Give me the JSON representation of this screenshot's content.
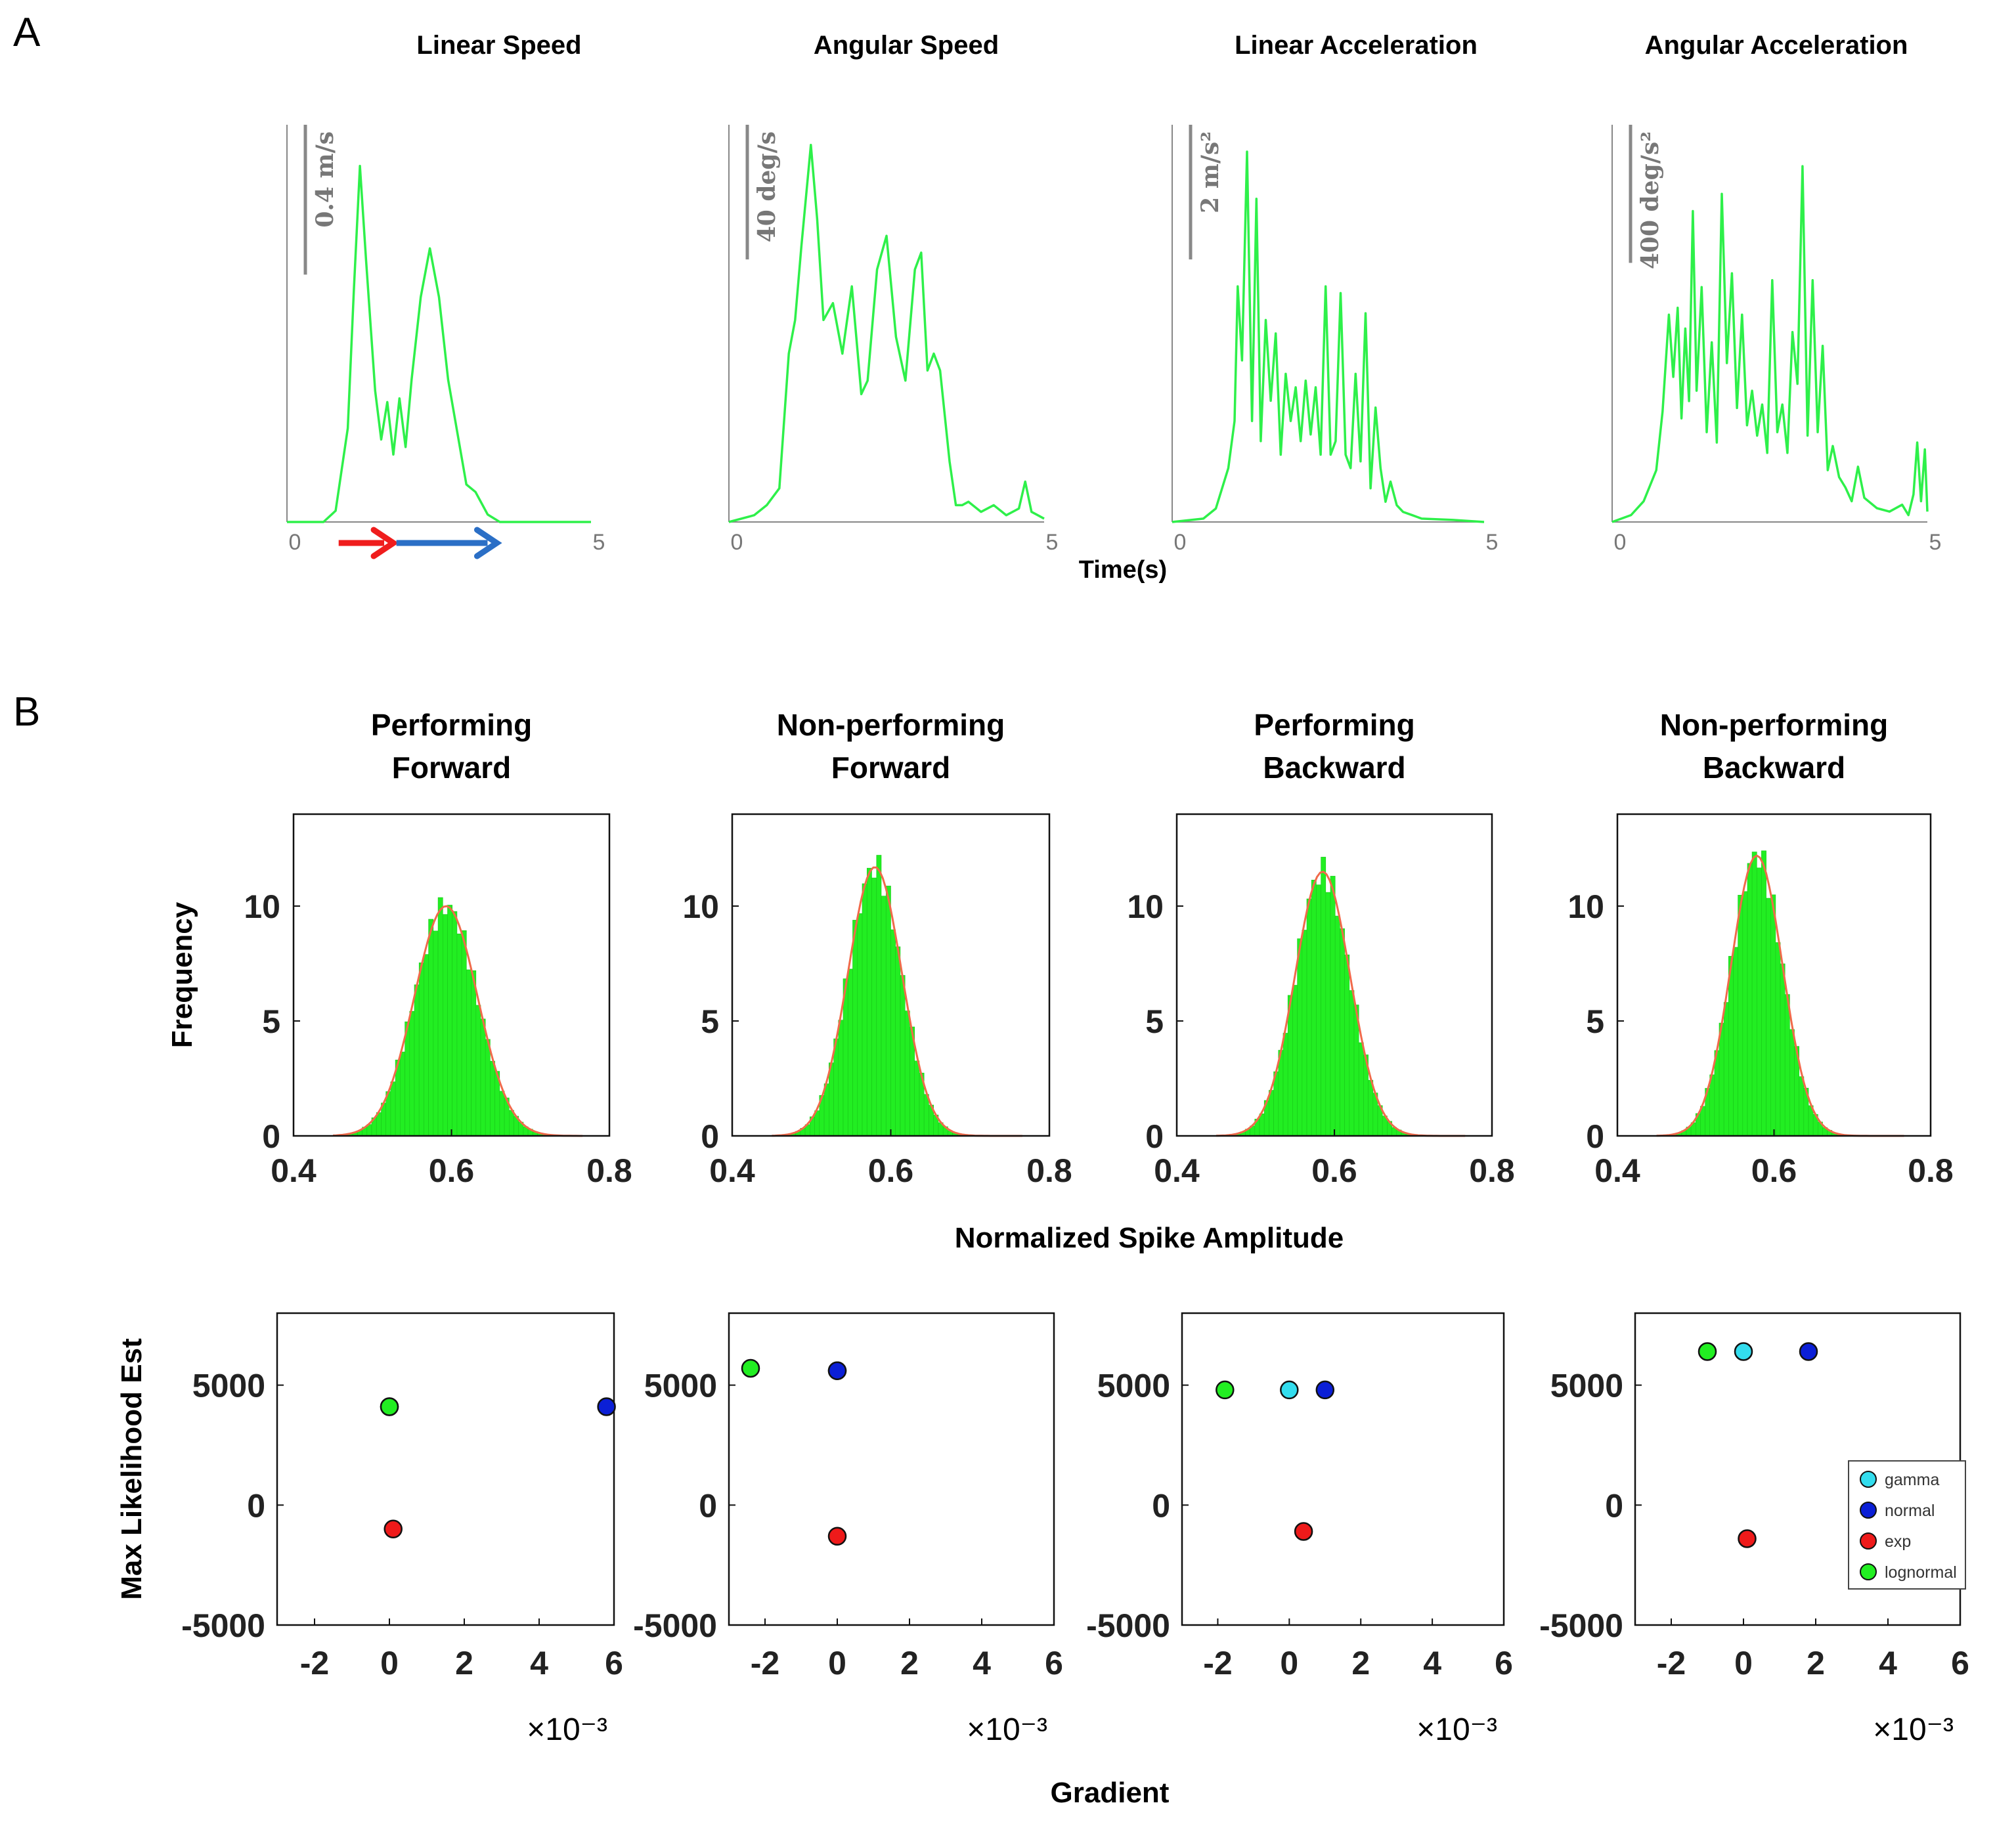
{
  "panel_labels": {
    "a": "A",
    "b": "B"
  },
  "chart_data": [
    {
      "type": "line",
      "group": "A",
      "title": "Linear Speed",
      "scale_bar": "0.4 m/s",
      "scale_value": 0.4,
      "ylim": [
        0,
        1.06
      ],
      "xlim": [
        0,
        5
      ],
      "xticks": [
        "0",
        "5"
      ],
      "series": [
        {
          "name": "Linear Speed",
          "x": [
            0,
            0.6,
            0.8,
            1.0,
            1.1,
            1.2,
            1.3,
            1.45,
            1.55,
            1.65,
            1.75,
            1.85,
            1.95,
            2.05,
            2.2,
            2.35,
            2.5,
            2.65,
            2.8,
            2.95,
            3.1,
            3.3,
            3.5,
            5.0
          ],
          "y": [
            0,
            0,
            0.03,
            0.25,
            0.62,
            0.95,
            0.7,
            0.35,
            0.22,
            0.32,
            0.18,
            0.33,
            0.2,
            0.38,
            0.6,
            0.73,
            0.6,
            0.38,
            0.24,
            0.1,
            0.08,
            0.02,
            0,
            0
          ]
        }
      ],
      "arrows": [
        {
          "color": "#ef1d1d",
          "from": 0.85,
          "to": 1.75
        },
        {
          "color": "#2b6fc6",
          "from": 1.8,
          "to": 3.45
        }
      ]
    },
    {
      "type": "line",
      "group": "A",
      "title": "Angular Speed",
      "scale_bar": "40 deg/s",
      "scale_value": 40,
      "ylim": [
        0,
        118
      ],
      "xlim": [
        0,
        5
      ],
      "xticks": [
        "0",
        "5"
      ],
      "series": [
        {
          "name": "Angular Speed",
          "x": [
            0,
            0.4,
            0.6,
            0.8,
            0.95,
            1.05,
            1.15,
            1.3,
            1.4,
            1.5,
            1.65,
            1.8,
            1.95,
            2.1,
            2.2,
            2.35,
            2.5,
            2.65,
            2.8,
            2.95,
            3.05,
            3.15,
            3.25,
            3.35,
            3.5,
            3.6,
            3.7,
            3.8,
            4.0,
            4.2,
            4.4,
            4.6,
            4.7,
            4.8,
            4.9,
            5.0
          ],
          "y": [
            0,
            2,
            5,
            10,
            50,
            60,
            82,
            112,
            90,
            60,
            65,
            50,
            70,
            38,
            42,
            75,
            85,
            55,
            42,
            75,
            80,
            45,
            50,
            45,
            18,
            5,
            5,
            6,
            3,
            5,
            2,
            4,
            12,
            3,
            2,
            1
          ]
        }
      ]
    },
    {
      "type": "line",
      "group": "A",
      "title": "Linear Acceleration",
      "scale_bar": "2 m/s²",
      "scale_value": 2,
      "ylim": [
        0,
        5.9
      ],
      "xlim": [
        0,
        5
      ],
      "xticks": [
        "0",
        "5"
      ],
      "series": [
        {
          "name": "Linear Acceleration",
          "x": [
            0,
            0.5,
            0.7,
            0.9,
            1.0,
            1.05,
            1.12,
            1.2,
            1.28,
            1.35,
            1.42,
            1.5,
            1.58,
            1.66,
            1.74,
            1.82,
            1.9,
            1.98,
            2.06,
            2.14,
            2.22,
            2.3,
            2.38,
            2.46,
            2.54,
            2.62,
            2.7,
            2.78,
            2.86,
            2.94,
            3.02,
            3.1,
            3.18,
            3.26,
            3.34,
            3.42,
            3.5,
            3.6,
            3.7,
            3.85,
            4.0,
            4.5,
            5.0
          ],
          "y": [
            0,
            0.05,
            0.2,
            0.8,
            1.5,
            3.5,
            2.4,
            5.5,
            1.5,
            4.8,
            1.2,
            3.0,
            1.8,
            2.8,
            1.0,
            2.2,
            1.5,
            2.0,
            1.2,
            2.1,
            1.3,
            2.0,
            1.0,
            3.5,
            1.0,
            1.2,
            3.4,
            1.0,
            0.8,
            2.2,
            0.9,
            3.1,
            0.5,
            1.7,
            0.8,
            0.3,
            0.6,
            0.25,
            0.15,
            0.1,
            0.05,
            0.03,
            0
          ]
        }
      ]
    },
    {
      "type": "line",
      "group": "A",
      "title": "Angular Acceleration",
      "scale_bar": "400 deg/s²",
      "scale_value": 400,
      "ylim": [
        0,
        1150
      ],
      "xlim": [
        0,
        5
      ],
      "xticks": [
        "0",
        "5"
      ],
      "series": [
        {
          "name": "Angular Acceleration",
          "x": [
            0,
            0.3,
            0.5,
            0.7,
            0.8,
            0.9,
            0.97,
            1.04,
            1.1,
            1.16,
            1.22,
            1.28,
            1.34,
            1.42,
            1.5,
            1.58,
            1.66,
            1.74,
            1.82,
            1.9,
            1.98,
            2.06,
            2.14,
            2.22,
            2.3,
            2.38,
            2.46,
            2.54,
            2.62,
            2.7,
            2.78,
            2.86,
            2.94,
            3.02,
            3.1,
            3.18,
            3.26,
            3.34,
            3.42,
            3.5,
            3.6,
            3.7,
            3.8,
            3.9,
            4.0,
            4.2,
            4.4,
            4.6,
            4.7,
            4.78,
            4.84,
            4.9,
            4.96,
            5.0
          ],
          "y": [
            0,
            20,
            60,
            150,
            320,
            600,
            420,
            620,
            300,
            560,
            350,
            900,
            380,
            680,
            260,
            520,
            230,
            950,
            460,
            720,
            330,
            600,
            280,
            380,
            250,
            340,
            200,
            700,
            260,
            340,
            200,
            550,
            400,
            1030,
            250,
            700,
            260,
            510,
            150,
            220,
            130,
            100,
            60,
            160,
            70,
            40,
            30,
            50,
            20,
            80,
            230,
            60,
            210,
            30
          ]
        }
      ]
    },
    {
      "type": "bar",
      "group": "B",
      "title": "Performing\nForward",
      "xlim": [
        0.4,
        0.8
      ],
      "ylim": [
        0,
        14
      ],
      "xticks": [
        "0.4",
        "0.6",
        "0.8"
      ],
      "yticks": [
        "0",
        "5",
        "10"
      ],
      "ylabel": "Frequency",
      "mu": 0.593,
      "sigma": 0.04,
      "peak": 10.0,
      "bar_color": "#22ee22",
      "fit_color": "#f06a4a"
    },
    {
      "type": "bar",
      "group": "B",
      "title": "Non-performing\nForward",
      "xlim": [
        0.4,
        0.8
      ],
      "ylim": [
        0,
        14
      ],
      "xticks": [
        "0.4",
        "0.6",
        "0.8"
      ],
      "yticks": [
        "0",
        "5",
        "10"
      ],
      "mu": 0.58,
      "sigma": 0.034,
      "peak": 11.7,
      "bar_color": "#22ee22",
      "fit_color": "#f06a4a"
    },
    {
      "type": "bar",
      "group": "B",
      "title": "Performing\nBackward",
      "xlim": [
        0.4,
        0.8
      ],
      "ylim": [
        0,
        14
      ],
      "xticks": [
        "0.4",
        "0.6",
        "0.8"
      ],
      "yticks": [
        "0",
        "5",
        "10"
      ],
      "mu": 0.585,
      "sigma": 0.035,
      "peak": 11.5,
      "bar_color": "#22ee22",
      "fit_color": "#f06a4a"
    },
    {
      "type": "bar",
      "group": "B",
      "title": "Non-performing\nBackward",
      "xlim": [
        0.4,
        0.8
      ],
      "ylim": [
        0,
        14
      ],
      "xticks": [
        "0.4",
        "0.6",
        "0.8"
      ],
      "yticks": [
        "0",
        "5",
        "10"
      ],
      "mu": 0.578,
      "sigma": 0.033,
      "peak": 12.2,
      "bar_color": "#22ee22",
      "fit_color": "#f06a4a"
    },
    {
      "type": "scatter",
      "group": "B2",
      "xlim": [
        -3,
        6
      ],
      "ylim": [
        -5000,
        8000
      ],
      "xticks": [
        "-2",
        "0",
        "2",
        "4",
        "6"
      ],
      "yticks": [
        "-5000",
        "0",
        "5000"
      ],
      "ylabel": "Max Likelihood Est",
      "exponent": "×10⁻³",
      "points": [
        {
          "name": "gamma",
          "x": 0.0,
          "y": 4100
        },
        {
          "name": "normal",
          "x": 5.8,
          "y": 4100
        },
        {
          "name": "exp",
          "x": 0.1,
          "y": -1000
        },
        {
          "name": "lognormal",
          "x": 0.0,
          "y": 4100
        }
      ]
    },
    {
      "type": "scatter",
      "group": "B2",
      "xlim": [
        -3,
        6
      ],
      "ylim": [
        -5000,
        8000
      ],
      "xticks": [
        "-2",
        "0",
        "2",
        "4",
        "6"
      ],
      "yticks": [
        "-5000",
        "0",
        "5000"
      ],
      "exponent": "×10⁻³",
      "points": [
        {
          "name": "lognormal",
          "x": -2.4,
          "y": 5700
        },
        {
          "name": "gamma",
          "x": 0.0,
          "y": 5600
        },
        {
          "name": "normal",
          "x": 0.0,
          "y": 5600
        },
        {
          "name": "exp",
          "x": 0.0,
          "y": -1300
        }
      ]
    },
    {
      "type": "scatter",
      "group": "B2",
      "xlim": [
        -3,
        6
      ],
      "ylim": [
        -5000,
        8000
      ],
      "xticks": [
        "-2",
        "0",
        "2",
        "4",
        "6"
      ],
      "yticks": [
        "-5000",
        "0",
        "5000"
      ],
      "exponent": "×10⁻³",
      "points": [
        {
          "name": "lognormal",
          "x": -1.8,
          "y": 4800
        },
        {
          "name": "gamma",
          "x": 0.0,
          "y": 4800
        },
        {
          "name": "normal",
          "x": 1.0,
          "y": 4800
        },
        {
          "name": "exp",
          "x": 0.4,
          "y": -1100
        }
      ]
    },
    {
      "type": "scatter",
      "group": "B2",
      "xlim": [
        -3,
        6
      ],
      "ylim": [
        -5000,
        8000
      ],
      "xticks": [
        "-2",
        "0",
        "2",
        "4",
        "6"
      ],
      "yticks": [
        "-5000",
        "0",
        "5000"
      ],
      "exponent": "×10⁻³",
      "points": [
        {
          "name": "lognormal",
          "x": -1.0,
          "y": 6400
        },
        {
          "name": "gamma",
          "x": 0.0,
          "y": 6400
        },
        {
          "name": "normal",
          "x": 1.8,
          "y": 6400
        },
        {
          "name": "exp",
          "x": 0.1,
          "y": -1400
        }
      ]
    }
  ],
  "axis_titles": {
    "time": "Time(s)",
    "amplitude": "Normalized Spike Amplitude",
    "gradient": "Gradient"
  },
  "legend": [
    {
      "name": "gamma",
      "color": "#33ddee"
    },
    {
      "name": "normal",
      "color": "#0b1fd6"
    },
    {
      "name": "exp",
      "color": "#ee1a1a"
    },
    {
      "name": "lognormal",
      "color": "#22ee22"
    }
  ]
}
